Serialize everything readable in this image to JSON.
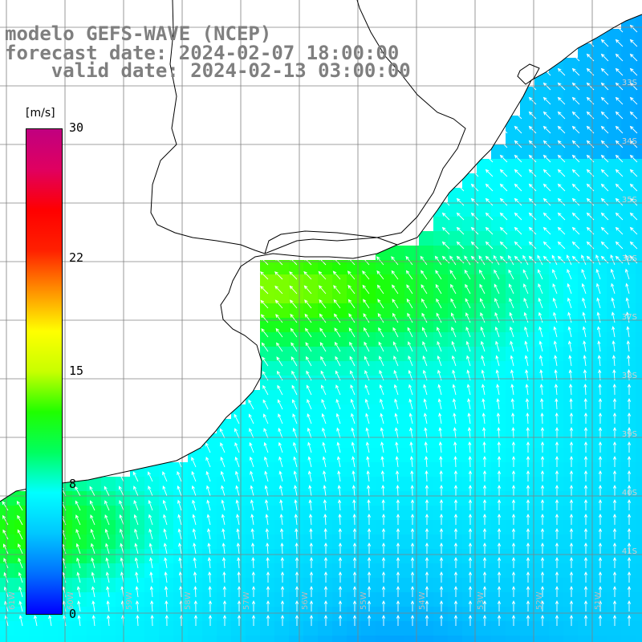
{
  "title": {
    "line1": "modelo GEFS-WAVE (NCEP)",
    "line2": "forecast date: 2024-02-07 18:00:00",
    "line3": "    valid date: 2024-02-13 03:00:00"
  },
  "colorbar": {
    "units": "[m/s]",
    "ticks": [
      "30",
      "22",
      "15",
      "8",
      "0"
    ],
    "tick_values": [
      30,
      22,
      15,
      8,
      0
    ],
    "min": 0,
    "max": 30,
    "colors": [
      "#0000ff",
      "#0070ff",
      "#00c8ff",
      "#00ffff",
      "#00ff60",
      "#20ff00",
      "#c8ff00",
      "#ffff00",
      "#ff9000",
      "#ff2000",
      "#ff0000",
      "#e00060",
      "#c00080"
    ]
  },
  "map": {
    "lat_labels": [
      "33S",
      "34S",
      "35S",
      "36S",
      "37S",
      "38S",
      "39S",
      "40S",
      "41S"
    ],
    "lon_labels": [
      "61W",
      "60W",
      "59W",
      "58W",
      "57W",
      "56W",
      "55W",
      "54W",
      "53W",
      "52W",
      "51W"
    ],
    "field_colors": {
      "land": "#ffffff",
      "coast": "#000000",
      "grid": "#808080",
      "arrow": "#ffffff"
    }
  }
}
